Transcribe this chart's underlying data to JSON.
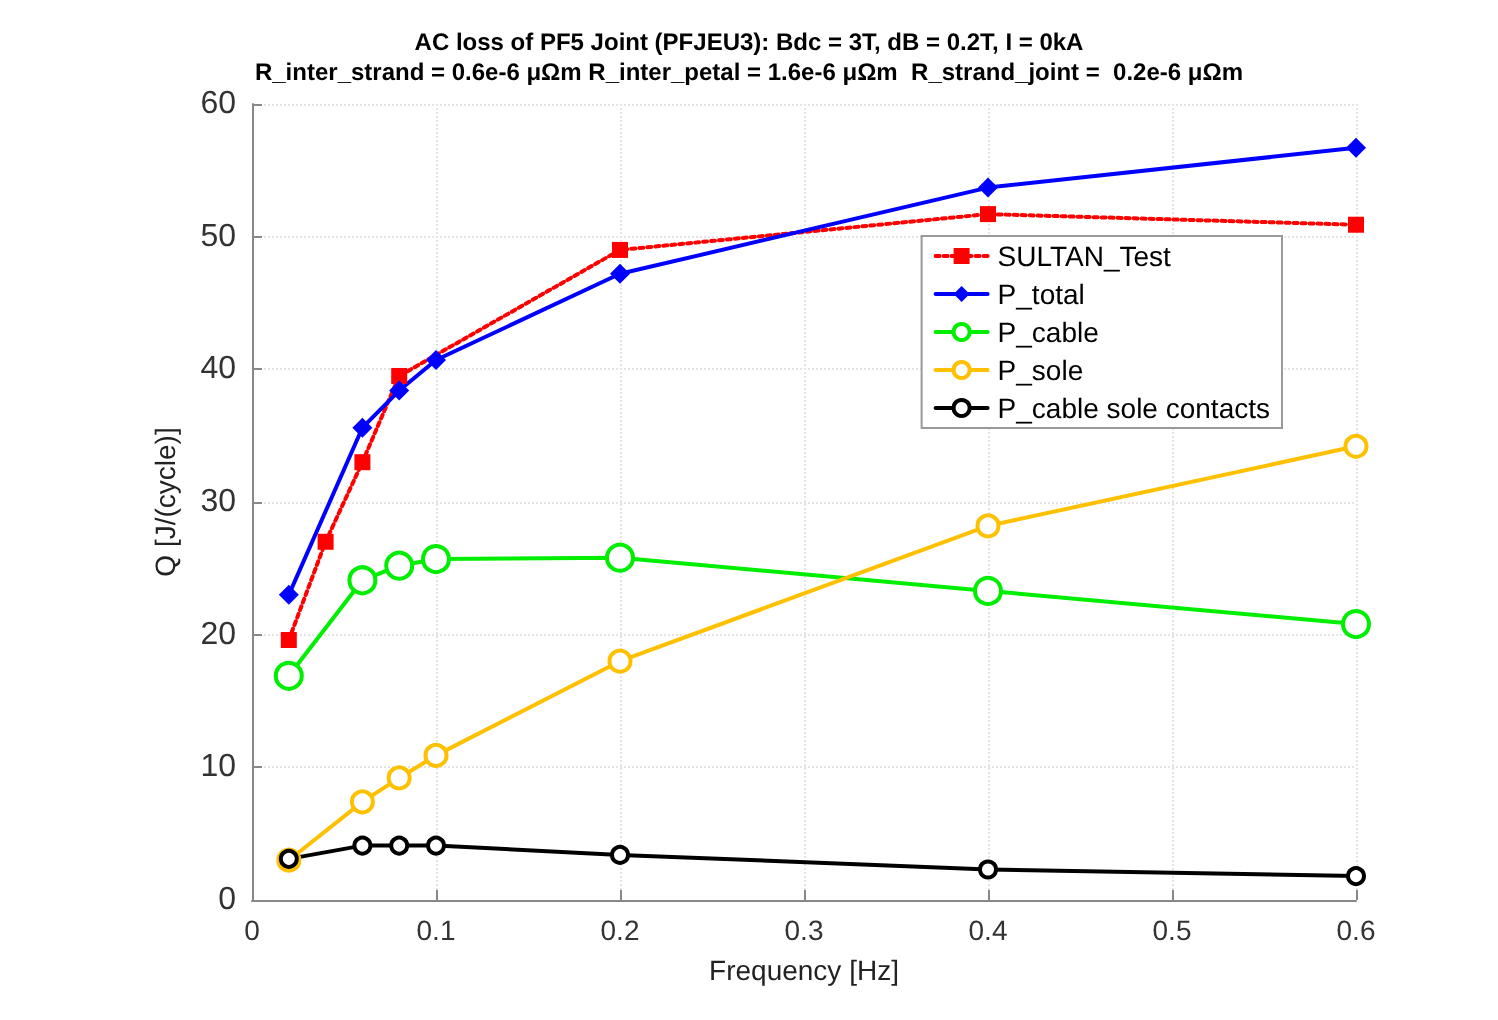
{
  "chart_data": {
    "type": "line",
    "title": "AC loss of PF5 Joint (PFJEU3): Bdc = 3T, dB = 0.2T, I = 0kA",
    "subtitle": "R_inter_strand = 0.6e-6 μΩm R_inter_petal = 1.6e-6 μΩm  R_strand_joint =  0.2e-6 μΩm",
    "xlabel": "Frequency [Hz]",
    "ylabel": "Q [J/(cycle)]",
    "xlim": [
      0,
      0.6
    ],
    "xticks": [
      0,
      0.1,
      0.2,
      0.3,
      0.4,
      0.5,
      0.6
    ],
    "ylim": [
      0,
      60
    ],
    "yticks": [
      0,
      10,
      20,
      30,
      40,
      50,
      60
    ],
    "grid": true,
    "legend": "top right",
    "series": [
      {
        "name": "SULTAN_Test",
        "color": "#ff0000",
        "marker": "square",
        "line_style": "dotted",
        "x": [
          0.02,
          0.04,
          0.06,
          0.08,
          0.2,
          0.4,
          0.6
        ],
        "values": [
          19.6,
          27,
          33,
          39.5,
          49,
          51.7,
          50.9
        ]
      },
      {
        "name": "P_total",
        "color": "#0000ff",
        "marker": "diamond",
        "line_style": "solid",
        "x": [
          0.02,
          0.06,
          0.08,
          0.1,
          0.2,
          0.4,
          0.6
        ],
        "values": [
          23,
          35.6,
          38.4,
          40.7,
          47.2,
          53.7,
          56.7
        ]
      },
      {
        "name": "P_cable",
        "color": "#00ee00",
        "marker": "circle",
        "line_style": "solid",
        "x": [
          0.02,
          0.06,
          0.08,
          0.1,
          0.2,
          0.4,
          0.6
        ],
        "values": [
          16.9,
          24.1,
          25.2,
          25.7,
          25.8,
          23.3,
          20.8
        ]
      },
      {
        "name": "P_sole",
        "color": "#ffc000",
        "marker": "circle",
        "line_style": "solid",
        "x": [
          0.02,
          0.06,
          0.08,
          0.1,
          0.2,
          0.4,
          0.6
        ],
        "values": [
          3.0,
          7.4,
          9.2,
          10.9,
          18,
          28.2,
          34.2
        ]
      },
      {
        "name": "P_cable sole contacts",
        "color": "#000000",
        "marker": "circle",
        "line_style": "solid",
        "x": [
          0.02,
          0.06,
          0.08,
          0.1,
          0.2,
          0.4,
          0.6
        ],
        "values": [
          3.1,
          4.1,
          4.1,
          4.1,
          3.4,
          2.3,
          1.8
        ]
      }
    ]
  }
}
